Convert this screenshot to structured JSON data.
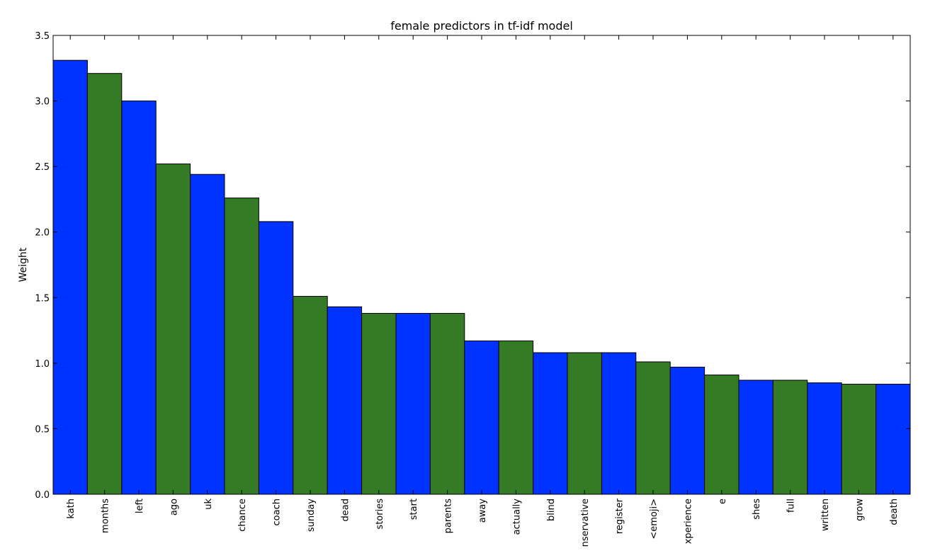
{
  "chart_data": {
    "type": "bar",
    "title": "female predictors in tf-idf model",
    "xlabel": "",
    "ylabel": "Weight",
    "ylim": [
      0,
      3.5
    ],
    "yticks": [
      "0.0",
      "0.5",
      "1.0",
      "1.5",
      "2.0",
      "2.5",
      "3.0",
      "3.5"
    ],
    "grid": false,
    "categories": [
      "kath",
      "months",
      "left",
      "ago",
      "uk",
      "chance",
      "coach",
      "sunday",
      "dead",
      "stories",
      "start",
      "parents",
      "away",
      "actually",
      "blind",
      "nservative",
      "register",
      "<emoji>",
      "xperience",
      "e",
      "shes",
      "full",
      "written",
      "grow",
      "death"
    ],
    "values": [
      3.31,
      3.21,
      3.0,
      2.52,
      2.44,
      2.26,
      2.08,
      1.51,
      1.43,
      1.38,
      1.38,
      1.38,
      1.17,
      1.17,
      1.08,
      1.08,
      1.08,
      1.01,
      0.97,
      0.91,
      0.87,
      0.87,
      0.85,
      0.84,
      0.84
    ],
    "bar_colors": [
      "#0033ff",
      "#357a25"
    ]
  }
}
